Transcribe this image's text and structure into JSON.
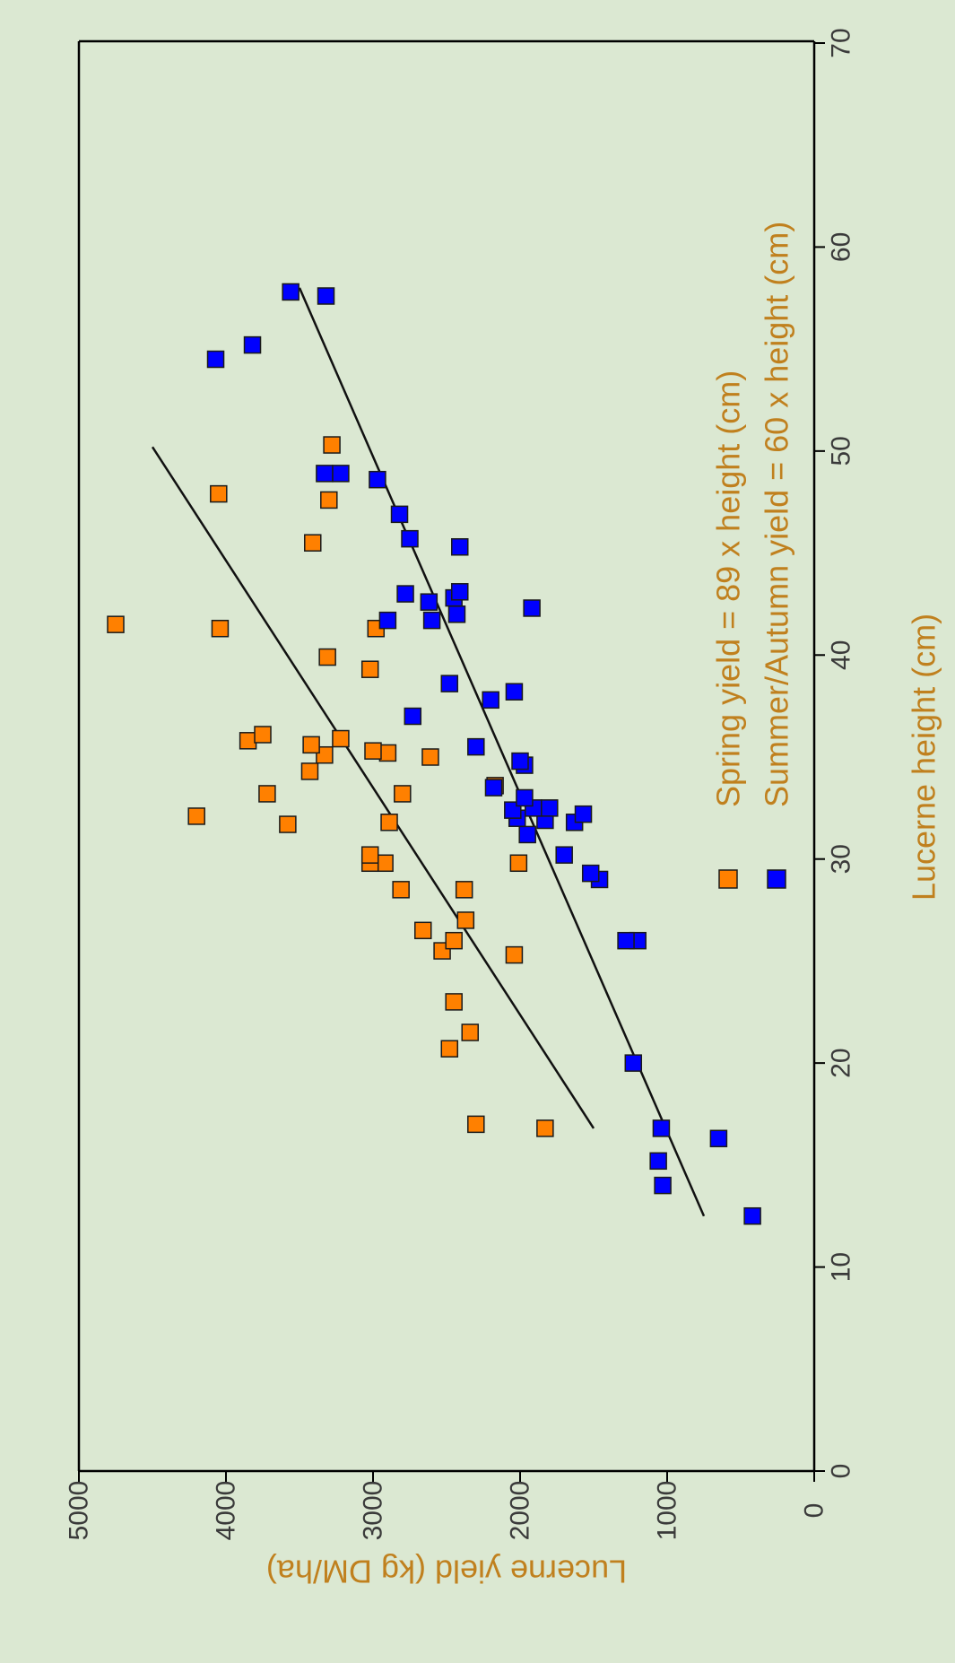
{
  "colors": {
    "background": "#dbe8d2",
    "spring": "#ff8000",
    "summer_autumn": "#0000ff",
    "marker_edge": "#1a1a1a",
    "text": "#c0801e",
    "axis": "#000000"
  },
  "chart_data": {
    "type": "scatter",
    "orientation": "rotated 90 degrees counter-clockwise",
    "xlabel": "Lucerne height (cm)",
    "ylabel": "Lucerne yield (kg DM/ha)",
    "xlim": [
      0,
      70
    ],
    "ylim": [
      0,
      5000
    ],
    "xticks": [
      "0",
      "10",
      "20",
      "30",
      "40",
      "50",
      "60",
      "70"
    ],
    "yticks": [
      "0",
      "1000",
      "2000",
      "3000",
      "4000",
      "5000"
    ],
    "grid": false,
    "legend_position": "inside, right of plot area",
    "series": [
      {
        "name": "Spring yield  = 89 x height (cm)",
        "color": "#ff8000",
        "marker": "square",
        "points": [
          [
            16.8,
            1830
          ],
          [
            17.0,
            2300
          ],
          [
            20.7,
            2480
          ],
          [
            21.5,
            2340
          ],
          [
            23.0,
            2450
          ],
          [
            25.3,
            2040
          ],
          [
            25.5,
            2530
          ],
          [
            26.0,
            2450
          ],
          [
            26.5,
            2660
          ],
          [
            27.0,
            2370
          ],
          [
            28.5,
            2380
          ],
          [
            28.5,
            2810
          ],
          [
            29.8,
            2010
          ],
          [
            29.8,
            2920
          ],
          [
            29.8,
            3020
          ],
          [
            30.2,
            3020
          ],
          [
            31.7,
            3580
          ],
          [
            31.8,
            2890
          ],
          [
            32.1,
            4200
          ],
          [
            33.2,
            2800
          ],
          [
            33.2,
            3720
          ],
          [
            33.6,
            2170
          ],
          [
            34.3,
            3430
          ],
          [
            35.0,
            2610
          ],
          [
            35.1,
            3330
          ],
          [
            35.2,
            2900
          ],
          [
            35.3,
            3000
          ],
          [
            35.6,
            3420
          ],
          [
            35.8,
            3850
          ],
          [
            35.9,
            3220
          ],
          [
            36.1,
            3750
          ],
          [
            39.3,
            3020
          ],
          [
            39.9,
            3310
          ],
          [
            41.3,
            2980
          ],
          [
            41.3,
            4040
          ],
          [
            41.5,
            4750
          ],
          [
            45.5,
            3410
          ],
          [
            47.6,
            3300
          ],
          [
            47.9,
            4050
          ],
          [
            50.3,
            3280
          ]
        ]
      },
      {
        "name": "Summer/Autumn yield  = 60 x height (cm)",
        "color": "#0000ff",
        "marker": "square",
        "points": [
          [
            12.5,
            420
          ],
          [
            14.0,
            1030
          ],
          [
            15.2,
            1060
          ],
          [
            16.3,
            650
          ],
          [
            16.8,
            1040
          ],
          [
            20.0,
            1230
          ],
          [
            26.0,
            1200
          ],
          [
            26.0,
            1280
          ],
          [
            29.0,
            1460
          ],
          [
            29.3,
            1520
          ],
          [
            30.2,
            1700
          ],
          [
            31.2,
            1950
          ],
          [
            31.8,
            1630
          ],
          [
            31.9,
            1830
          ],
          [
            32.0,
            2020
          ],
          [
            32.2,
            1570
          ],
          [
            32.4,
            2050
          ],
          [
            32.5,
            1800
          ],
          [
            32.5,
            1910
          ],
          [
            33.0,
            1970
          ],
          [
            33.5,
            2180
          ],
          [
            34.6,
            1970
          ],
          [
            34.8,
            2000
          ],
          [
            35.5,
            2300
          ],
          [
            37.0,
            2730
          ],
          [
            37.8,
            2200
          ],
          [
            38.2,
            2040
          ],
          [
            38.6,
            2480
          ],
          [
            41.7,
            2600
          ],
          [
            41.7,
            2900
          ],
          [
            42.0,
            2430
          ],
          [
            42.3,
            1920
          ],
          [
            42.6,
            2620
          ],
          [
            42.8,
            2450
          ],
          [
            43.0,
            2780
          ],
          [
            43.1,
            2410
          ],
          [
            45.3,
            2410
          ],
          [
            45.7,
            2750
          ],
          [
            46.9,
            2820
          ],
          [
            48.6,
            2970
          ],
          [
            48.9,
            3220
          ],
          [
            48.9,
            3330
          ],
          [
            54.5,
            4070
          ],
          [
            55.2,
            3820
          ],
          [
            57.6,
            3320
          ],
          [
            57.8,
            3560
          ]
        ]
      }
    ],
    "fit_lines": [
      {
        "series": "Spring yield  = 89 x height (cm)",
        "x": [
          16.8,
          50.2
        ],
        "y": [
          1500,
          4500
        ]
      },
      {
        "series": "Summer/Autumn yield  = 60 x height (cm)",
        "x": [
          12.5,
          58.0
        ],
        "y": [
          750,
          3500
        ]
      }
    ]
  }
}
